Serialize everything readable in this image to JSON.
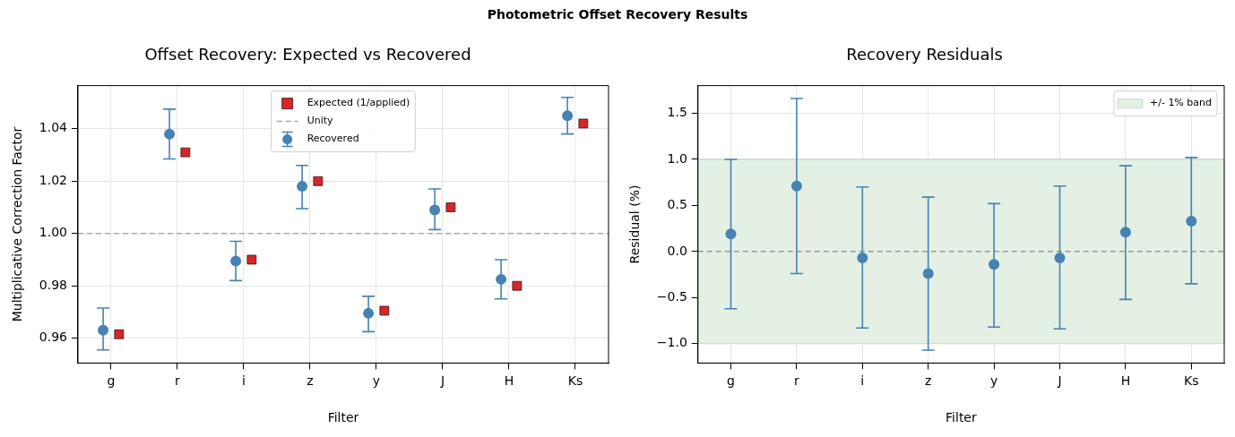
{
  "chart_data": [
    {
      "type": "scatter",
      "title": "Offset Recovery: Expected vs Recovered",
      "xlabel": "Filter",
      "ylabel": "Multiplicative Correction Factor",
      "annotations": [
        "Photometric Offset Recovery Results"
      ],
      "categories": [
        "g",
        "r",
        "i",
        "z",
        "y",
        "J",
        "H",
        "Ks"
      ],
      "series": [
        {
          "name": "Recovered",
          "marker": "circle",
          "color": "#4682b4",
          "x": [
            "g",
            "r",
            "i",
            "z",
            "y",
            "J",
            "H",
            "Ks"
          ],
          "values": [
            0.963,
            1.038,
            0.9895,
            1.018,
            0.9695,
            1.009,
            0.9825,
            1.045
          ],
          "errors": [
            [
              0.9555,
              0.9715
            ],
            [
              1.0285,
              1.0475
            ],
            [
              0.982,
              0.997
            ],
            [
              1.0095,
              1.026
            ],
            [
              0.9625,
              0.976
            ],
            [
              1.0015,
              1.017
            ],
            [
              0.975,
              0.99
            ],
            [
              1.038,
              1.052
            ]
          ]
        },
        {
          "name": "Expected (1/applied)",
          "marker": "square",
          "color": "#d62728",
          "x": [
            "g",
            "r",
            "i",
            "z",
            "y",
            "J",
            "H",
            "Ks"
          ],
          "values": [
            0.9615,
            1.031,
            0.99,
            1.02,
            0.9705,
            1.01,
            0.98,
            1.042
          ]
        }
      ],
      "ref_lines": [
        {
          "axis": "y",
          "value": 1,
          "label": "Unity",
          "color": "#aaaaaa",
          "line_style": "dashed"
        }
      ],
      "ylim": [
        0.9505,
        1.0565
      ],
      "yticks": [
        0.96,
        0.98,
        {
          "value": 1,
          "label": "1.00"
        },
        1.02,
        1.04
      ],
      "grid": true,
      "legend": "top"
    },
    {
      "type": "scatter",
      "title": "Recovery Residuals",
      "xlabel": "Filter",
      "ylabel": "Residual (%)",
      "categories": [
        "g",
        "r",
        "i",
        "z",
        "y",
        "J",
        "H",
        "Ks"
      ],
      "series": [
        {
          "marker": "circle",
          "color": "#4682b4",
          "x": [
            "g",
            "r",
            "i",
            "z",
            "y",
            "J",
            "H",
            "Ks"
          ],
          "values": [
            0.19,
            0.71,
            -0.07,
            -0.24,
            -0.14,
            -0.07,
            0.21,
            0.33
          ],
          "errors": [
            [
              -0.62,
              1.0
            ],
            [
              -0.24,
              1.66
            ],
            [
              -0.83,
              0.7
            ],
            [
              -1.07,
              0.59
            ],
            [
              -0.82,
              0.52
            ],
            [
              -0.84,
              0.71
            ],
            [
              -0.52,
              0.93
            ],
            [
              -0.35,
              1.02
            ]
          ]
        }
      ],
      "ref_lines": [
        {
          "axis": "y",
          "value": 0,
          "color": "#999999",
          "line_style": "dashed"
        }
      ],
      "bands": [
        {
          "axis": "y",
          "from": -1,
          "to": 1,
          "label": "+/- 1% band",
          "color": "#e3f0e3"
        }
      ],
      "ylim": [
        -1.21,
        1.8
      ],
      "yticks": [
        {
          "value": -1,
          "label": "−1.0"
        },
        {
          "value": -0.5,
          "label": "−0.5"
        },
        {
          "value": 0,
          "label": "0.0"
        },
        {
          "value": 0.5,
          "label": "0.5"
        },
        {
          "value": 1,
          "label": "1.0"
        },
        {
          "value": 1.5,
          "label": "1.5"
        }
      ],
      "grid": true,
      "legend": "top right"
    }
  ]
}
